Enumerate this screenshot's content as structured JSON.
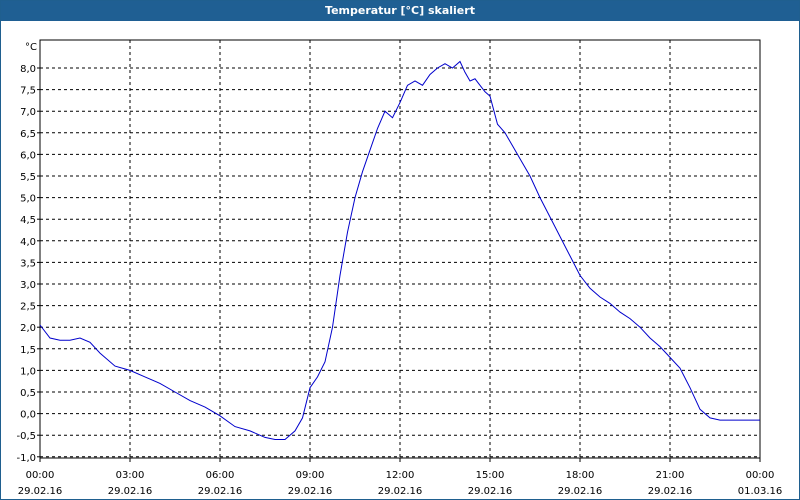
{
  "window": {
    "title": "Temperatur [°C] skaliert"
  },
  "colors": {
    "titlebar": "#1f5f93",
    "line": "#0000cc",
    "grid": "#000000"
  },
  "chart_data": {
    "type": "line",
    "title": "Temperatur [°C] skaliert",
    "yunit": "°C",
    "ylim": [
      -1.0,
      8.5
    ],
    "yticks": [
      {
        "value": 8.0,
        "label": "8,0"
      },
      {
        "value": 7.5,
        "label": "7,5"
      },
      {
        "value": 7.0,
        "label": "7,0"
      },
      {
        "value": 6.5,
        "label": "6,5"
      },
      {
        "value": 6.0,
        "label": "6,0"
      },
      {
        "value": 5.5,
        "label": "5,5"
      },
      {
        "value": 5.0,
        "label": "5,0"
      },
      {
        "value": 4.5,
        "label": "4,5"
      },
      {
        "value": 4.0,
        "label": "4,0"
      },
      {
        "value": 3.5,
        "label": "3,5"
      },
      {
        "value": 3.0,
        "label": "3,0"
      },
      {
        "value": 2.5,
        "label": "2,5"
      },
      {
        "value": 2.0,
        "label": "2,0"
      },
      {
        "value": 1.5,
        "label": "1,5"
      },
      {
        "value": 1.0,
        "label": "1,0"
      },
      {
        "value": 0.5,
        "label": "0,5"
      },
      {
        "value": 0.0,
        "label": "0,0"
      },
      {
        "value": -0.5,
        "label": "-0,5"
      },
      {
        "value": -1.0,
        "label": "-1,0"
      }
    ],
    "xlim": [
      "29.02.16 00:00",
      "01.03.16 00:00"
    ],
    "xticks": [
      {
        "time": "00:00",
        "date": "29.02.16"
      },
      {
        "time": "03:00",
        "date": "29.02.16"
      },
      {
        "time": "06:00",
        "date": "29.02.16"
      },
      {
        "time": "09:00",
        "date": "29.02.16"
      },
      {
        "time": "12:00",
        "date": "29.02.16"
      },
      {
        "time": "15:00",
        "date": "29.02.16"
      },
      {
        "time": "18:00",
        "date": "29.02.16"
      },
      {
        "time": "21:00",
        "date": "29.02.16"
      },
      {
        "time": "00:00",
        "date": "01.03.16"
      }
    ],
    "grid": true,
    "series": [
      {
        "x": [
          "00:00",
          "00:20",
          "00:40",
          "01:00",
          "01:20",
          "01:40",
          "02:00",
          "02:30",
          "03:00",
          "03:30",
          "04:00",
          "04:30",
          "05:00",
          "05:30",
          "06:00",
          "06:30",
          "07:00",
          "07:30",
          "07:50",
          "08:10",
          "08:30",
          "08:45",
          "09:00",
          "09:15",
          "09:30",
          "09:45",
          "10:00",
          "10:15",
          "10:30",
          "10:45",
          "11:00",
          "11:15",
          "11:30",
          "11:45",
          "12:00",
          "12:15",
          "12:30",
          "12:45",
          "13:00",
          "13:15",
          "13:30",
          "13:45",
          "14:00",
          "14:10",
          "14:20",
          "14:30",
          "14:40",
          "14:50",
          "15:00",
          "15:15",
          "15:30",
          "15:45",
          "16:00",
          "16:20",
          "16:40",
          "17:00",
          "17:20",
          "17:40",
          "18:00",
          "18:20",
          "18:40",
          "19:00",
          "19:20",
          "19:40",
          "20:00",
          "20:20",
          "20:40",
          "21:00",
          "21:20",
          "21:40",
          "22:00",
          "22:20",
          "22:40",
          "23:00",
          "23:20",
          "23:40",
          "24:00"
        ],
        "y": [
          2.05,
          1.75,
          1.7,
          1.7,
          1.75,
          1.65,
          1.4,
          1.1,
          1.0,
          0.85,
          0.7,
          0.5,
          0.3,
          0.15,
          -0.05,
          -0.3,
          -0.4,
          -0.55,
          -0.6,
          -0.6,
          -0.4,
          -0.1,
          0.6,
          0.85,
          1.2,
          2.0,
          3.2,
          4.2,
          5.0,
          5.6,
          6.1,
          6.6,
          7.0,
          6.85,
          7.2,
          7.6,
          7.7,
          7.6,
          7.85,
          8.0,
          8.1,
          8.0,
          8.15,
          7.9,
          7.7,
          7.75,
          7.6,
          7.45,
          7.35,
          6.7,
          6.5,
          6.2,
          5.9,
          5.5,
          5.0,
          4.55,
          4.1,
          3.65,
          3.2,
          2.9,
          2.7,
          2.55,
          2.35,
          2.2,
          2.0,
          1.75,
          1.55,
          1.3,
          1.05,
          0.6,
          0.1,
          -0.1,
          -0.15,
          -0.15,
          -0.15,
          -0.15,
          -0.15
        ]
      }
    ]
  }
}
